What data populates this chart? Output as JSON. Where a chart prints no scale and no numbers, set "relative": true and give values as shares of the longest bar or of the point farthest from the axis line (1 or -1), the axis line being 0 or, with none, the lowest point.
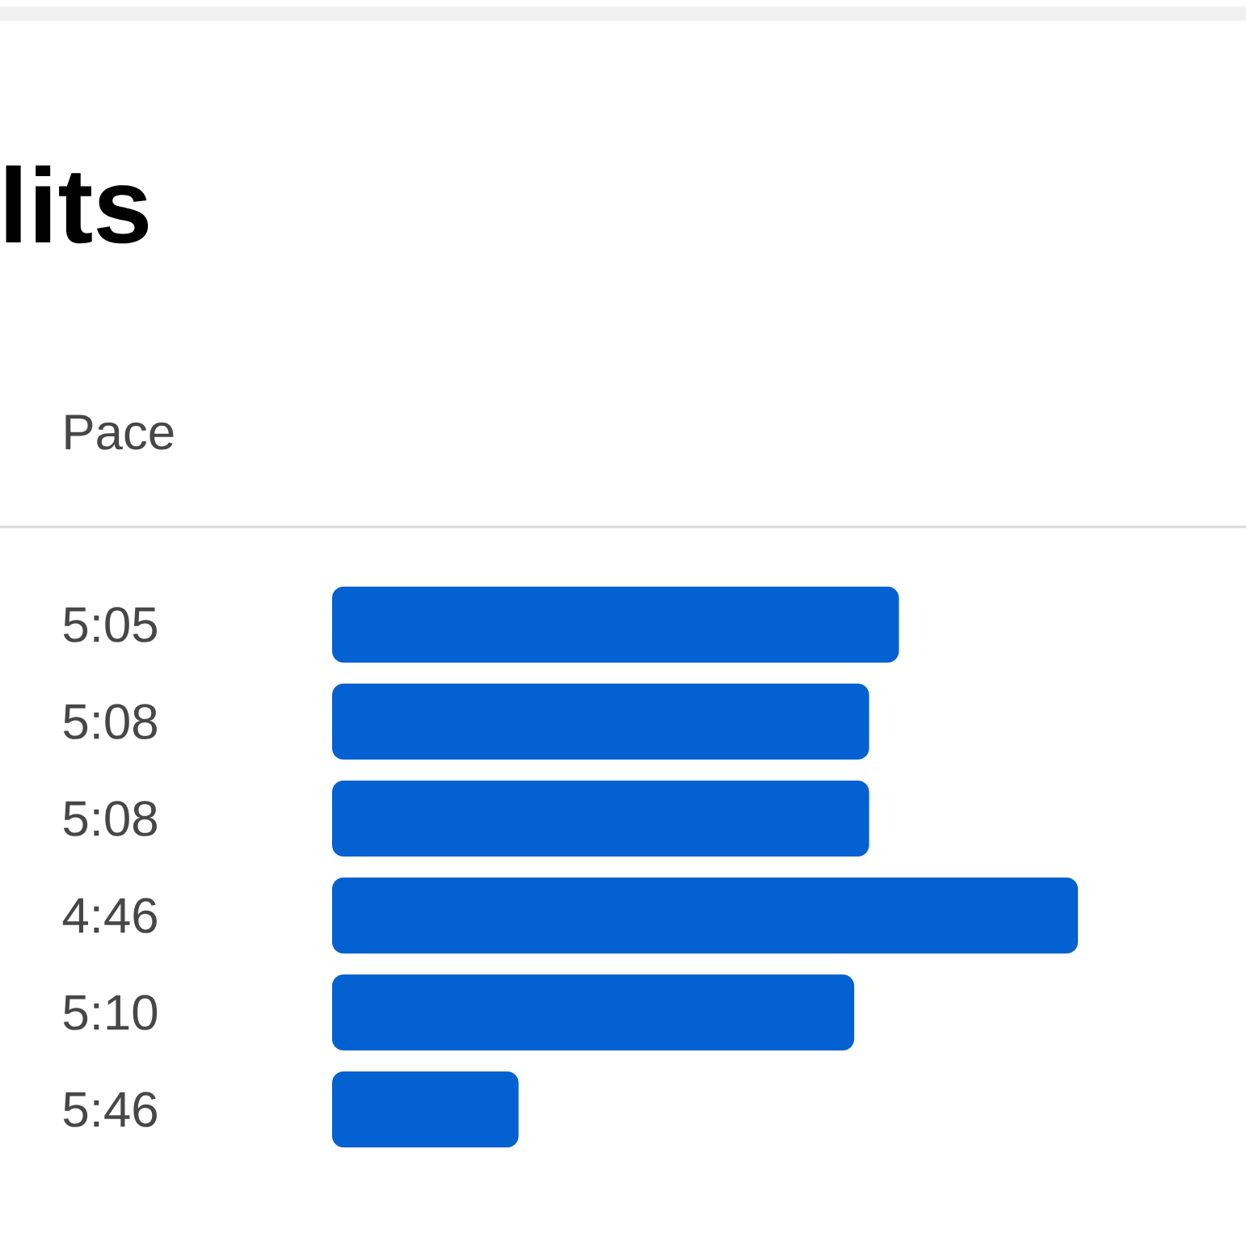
{
  "chart_data": {
    "type": "bar",
    "orientation": "horizontal",
    "title": "lits",
    "ylabel": "Pace",
    "categories": [
      "5:05",
      "5:08",
      "5:08",
      "4:46",
      "5:10",
      "5:46"
    ],
    "values": [
      0.76,
      0.72,
      0.72,
      1,
      0.7,
      0.25
    ],
    "color": "#0461d1",
    "relative": true
  }
}
